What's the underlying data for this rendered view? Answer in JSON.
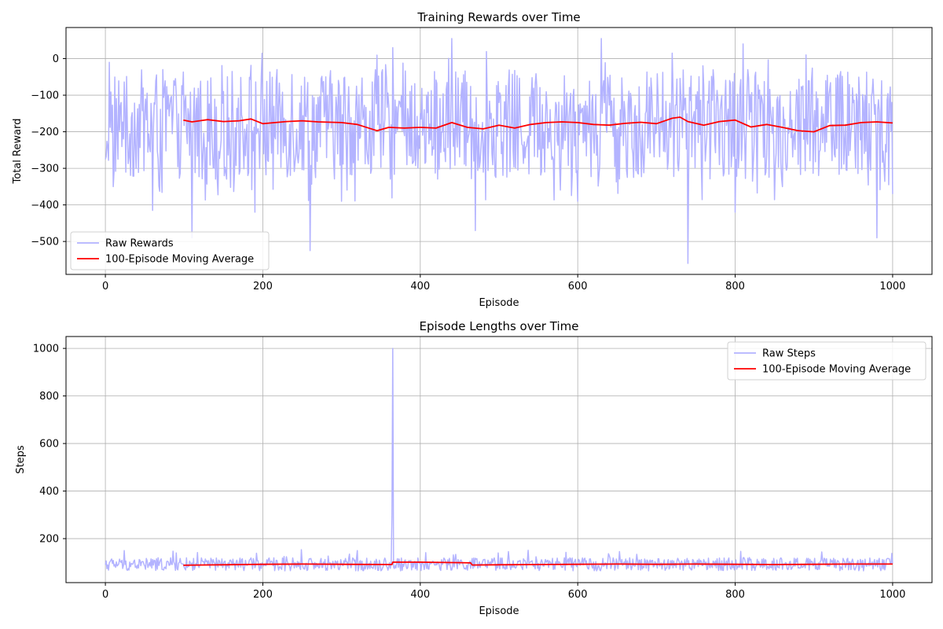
{
  "chart_data": [
    {
      "type": "line",
      "title": "Training Rewards over Time",
      "xlabel": "Episode",
      "ylabel": "Total Reward",
      "xlim": [
        -50,
        1050
      ],
      "ylim": [
        -590,
        85
      ],
      "xticks": [
        0,
        200,
        400,
        600,
        800,
        1000
      ],
      "yticks": [
        0,
        -100,
        -200,
        -300,
        -400,
        -500
      ],
      "grid": true,
      "legend_position": "lower-left",
      "series": [
        {
          "name": "Raw Rewards",
          "color": "#b3b3ff",
          "style": "noisy",
          "x": [
            0,
            5,
            10,
            20,
            40,
            60,
            90,
            110,
            115,
            150,
            180,
            190,
            220,
            260,
            280,
            300,
            340,
            365,
            400,
            440,
            470,
            500,
            550,
            600,
            630,
            700,
            720,
            740,
            800,
            810,
            860,
            890,
            940,
            980,
            1000
          ],
          "y": [
            -275,
            -10,
            -350,
            -120,
            -200,
            -415,
            -100,
            -490,
            -150,
            -90,
            -180,
            -420,
            -130,
            -525,
            -50,
            -390,
            -200,
            30,
            -150,
            55,
            -470,
            -120,
            -180,
            -390,
            55,
            -200,
            15,
            -560,
            -420,
            40,
            -350,
            10,
            -180,
            -490,
            -370
          ]
        },
        {
          "name": "100-Episode Moving Average",
          "color": "#ff0000",
          "x": [
            99,
            110,
            130,
            150,
            170,
            185,
            200,
            210,
            230,
            250,
            270,
            300,
            320,
            345,
            360,
            380,
            400,
            420,
            440,
            460,
            480,
            500,
            520,
            540,
            560,
            580,
            600,
            620,
            640,
            660,
            680,
            700,
            720,
            730,
            740,
            760,
            780,
            800,
            820,
            840,
            860,
            880,
            900,
            920,
            940,
            960,
            980,
            1000
          ],
          "y": [
            -168,
            -173,
            -167,
            -172,
            -170,
            -165,
            -178,
            -176,
            -172,
            -170,
            -173,
            -175,
            -180,
            -197,
            -188,
            -190,
            -188,
            -190,
            -175,
            -188,
            -192,
            -182,
            -190,
            -180,
            -175,
            -173,
            -175,
            -180,
            -182,
            -177,
            -174,
            -178,
            -163,
            -160,
            -172,
            -182,
            -172,
            -168,
            -187,
            -180,
            -188,
            -197,
            -200,
            -183,
            -182,
            -175,
            -173,
            -176
          ]
        }
      ]
    },
    {
      "type": "line",
      "title": "Episode Lengths over Time",
      "xlabel": "Episode",
      "ylabel": "Steps",
      "xlim": [
        -50,
        1050
      ],
      "ylim": [
        15,
        1050
      ],
      "xticks": [
        0,
        200,
        400,
        600,
        800,
        1000
      ],
      "yticks": [
        200,
        400,
        600,
        800,
        1000
      ],
      "grid": true,
      "legend_position": "upper-right",
      "series": [
        {
          "name": "Raw Steps",
          "color": "#b3b3ff",
          "style": "noisy",
          "x": [
            0,
            20,
            50,
            90,
            100,
            150,
            200,
            250,
            300,
            320,
            360,
            364,
            365,
            366,
            370,
            400,
            450,
            500,
            550,
            600,
            650,
            700,
            750,
            800,
            850,
            900,
            950,
            1000
          ],
          "y": [
            90,
            100,
            85,
            140,
            80,
            95,
            90,
            100,
            95,
            150,
            80,
            300,
            1000,
            80,
            100,
            95,
            90,
            85,
            95,
            90,
            100,
            95,
            90,
            85,
            95,
            90,
            100,
            95
          ]
        },
        {
          "name": "100-Episode Moving Average",
          "color": "#ff0000",
          "x": [
            99,
            150,
            200,
            250,
            300,
            364,
            365,
            400,
            450,
            464,
            466,
            500,
            550,
            600,
            650,
            700,
            750,
            800,
            850,
            900,
            950,
            1000
          ],
          "y": [
            88,
            90,
            92,
            93,
            92,
            91,
            101,
            101,
            99,
            98,
            89,
            90,
            91,
            92,
            93,
            92,
            93,
            92,
            91,
            92,
            93,
            93
          ]
        }
      ]
    }
  ]
}
